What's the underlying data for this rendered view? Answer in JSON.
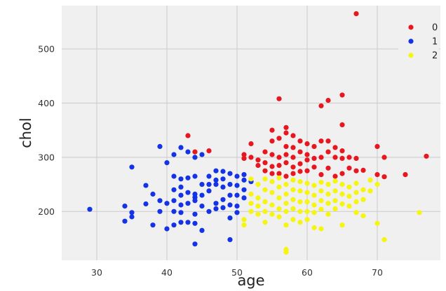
{
  "colors": {
    "0": "#e8161f",
    "1": "#1433e6",
    "2": "#f6f50f",
    "plot_background": "#f0f0f0",
    "grid": "#d0d0d0"
  },
  "chart_data": {
    "type": "scatter",
    "title": "",
    "xlabel": "age",
    "ylabel": "chol",
    "xlim": [
      25,
      79
    ],
    "ylim": [
      110,
      580
    ],
    "x_ticks": [
      30,
      40,
      50,
      60,
      70
    ],
    "y_ticks": [
      200,
      300,
      400,
      500
    ],
    "grid": true,
    "legend_position": "top-right",
    "series": [
      {
        "name": "0",
        "color": "#e8161f",
        "points": [
          [
            43,
            340
          ],
          [
            44,
            310
          ],
          [
            46,
            312
          ],
          [
            51,
            305
          ],
          [
            51,
            298
          ],
          [
            52,
            325
          ],
          [
            52,
            300
          ],
          [
            53,
            295
          ],
          [
            53,
            285
          ],
          [
            54,
            310
          ],
          [
            54,
            290
          ],
          [
            54,
            275
          ],
          [
            55,
            350
          ],
          [
            55,
            330
          ],
          [
            55,
            305
          ],
          [
            55,
            283
          ],
          [
            55,
            270
          ],
          [
            56,
            408
          ],
          [
            56,
            335
          ],
          [
            56,
            300
          ],
          [
            56,
            285
          ],
          [
            56,
            270
          ],
          [
            57,
            355
          ],
          [
            57,
            345
          ],
          [
            57,
            320
          ],
          [
            57,
            305
          ],
          [
            57,
            290
          ],
          [
            57,
            265
          ],
          [
            58,
            340
          ],
          [
            58,
            318
          ],
          [
            58,
            300
          ],
          [
            58,
            282
          ],
          [
            58,
            270
          ],
          [
            59,
            330
          ],
          [
            59,
            310
          ],
          [
            59,
            288
          ],
          [
            59,
            274
          ],
          [
            60,
            325
          ],
          [
            60,
            305
          ],
          [
            60,
            295
          ],
          [
            60,
            275
          ],
          [
            61,
            320
          ],
          [
            61,
            298
          ],
          [
            61,
            282
          ],
          [
            62,
            395
          ],
          [
            62,
            330
          ],
          [
            62,
            300
          ],
          [
            62,
            268
          ],
          [
            63,
            405
          ],
          [
            63,
            330
          ],
          [
            63,
            310
          ],
          [
            63,
            280
          ],
          [
            64,
            318
          ],
          [
            64,
            300
          ],
          [
            64,
            265
          ],
          [
            65,
            415
          ],
          [
            65,
            360
          ],
          [
            65,
            312
          ],
          [
            65,
            298
          ],
          [
            65,
            270
          ],
          [
            66,
            300
          ],
          [
            66,
            280
          ],
          [
            67,
            565
          ],
          [
            67,
            298
          ],
          [
            67,
            275
          ],
          [
            68,
            276
          ],
          [
            70,
            320
          ],
          [
            70,
            268
          ],
          [
            71,
            300
          ],
          [
            71,
            264
          ],
          [
            74,
            268
          ],
          [
            77,
            302
          ]
        ]
      },
      {
        "name": "1",
        "color": "#1433e6",
        "points": [
          [
            29,
            204
          ],
          [
            34,
            210
          ],
          [
            34,
            182
          ],
          [
            35,
            282
          ],
          [
            35,
            198
          ],
          [
            35,
            190
          ],
          [
            37,
            248
          ],
          [
            37,
            214
          ],
          [
            38,
            232
          ],
          [
            38,
            175
          ],
          [
            39,
            320
          ],
          [
            39,
            220
          ],
          [
            39,
            200
          ],
          [
            40,
            290
          ],
          [
            40,
            215
          ],
          [
            40,
            168
          ],
          [
            41,
            305
          ],
          [
            41,
            265
          ],
          [
            41,
            240
          ],
          [
            41,
            220
          ],
          [
            41,
            200
          ],
          [
            41,
            175
          ],
          [
            42,
            318
          ],
          [
            42,
            260
          ],
          [
            42,
            245
          ],
          [
            42,
            230
          ],
          [
            42,
            212
          ],
          [
            42,
            198
          ],
          [
            42,
            180
          ],
          [
            43,
            310
          ],
          [
            43,
            262
          ],
          [
            43,
            235
          ],
          [
            43,
            215
          ],
          [
            43,
            180
          ],
          [
            44,
            300
          ],
          [
            44,
            265
          ],
          [
            44,
            232
          ],
          [
            44,
            226
          ],
          [
            44,
            220
          ],
          [
            44,
            195
          ],
          [
            44,
            178
          ],
          [
            44,
            140
          ],
          [
            45,
            305
          ],
          [
            45,
            250
          ],
          [
            45,
            230
          ],
          [
            45,
            210
          ],
          [
            45,
            165
          ],
          [
            46,
            265
          ],
          [
            46,
            250
          ],
          [
            46,
            238
          ],
          [
            46,
            200
          ],
          [
            47,
            275
          ],
          [
            47,
            258
          ],
          [
            47,
            250
          ],
          [
            47,
            215
          ],
          [
            47,
            205
          ],
          [
            48,
            274
          ],
          [
            48,
            260
          ],
          [
            48,
            245
          ],
          [
            48,
            222
          ],
          [
            48,
            207
          ],
          [
            49,
            270
          ],
          [
            49,
            250
          ],
          [
            49,
            230
          ],
          [
            49,
            212
          ],
          [
            49,
            188
          ],
          [
            49,
            148
          ],
          [
            50,
            265
          ],
          [
            50,
            248
          ],
          [
            50,
            230
          ],
          [
            50,
            210
          ],
          [
            50,
            198
          ],
          [
            51,
            268
          ],
          [
            51,
            258
          ],
          [
            51,
            240
          ],
          [
            51,
            225
          ],
          [
            52,
            255
          ]
        ]
      },
      {
        "name": "2",
        "color": "#f6f50f",
        "points": [
          [
            51,
            175
          ],
          [
            51,
            185
          ],
          [
            52,
            260
          ],
          [
            52,
            232
          ],
          [
            52,
            215
          ],
          [
            52,
            200
          ],
          [
            53,
            250
          ],
          [
            53,
            225
          ],
          [
            53,
            210
          ],
          [
            53,
            195
          ],
          [
            54,
            260
          ],
          [
            54,
            240
          ],
          [
            54,
            218
          ],
          [
            54,
            200
          ],
          [
            54,
            180
          ],
          [
            55,
            255
          ],
          [
            55,
            235
          ],
          [
            55,
            212
          ],
          [
            55,
            195
          ],
          [
            56,
            262
          ],
          [
            56,
            245
          ],
          [
            56,
            225
          ],
          [
            56,
            205
          ],
          [
            56,
            190
          ],
          [
            57,
            250
          ],
          [
            57,
            232
          ],
          [
            57,
            215
          ],
          [
            57,
            200
          ],
          [
            57,
            175
          ],
          [
            57,
            130
          ],
          [
            57,
            125
          ],
          [
            58,
            258
          ],
          [
            58,
            240
          ],
          [
            58,
            222
          ],
          [
            58,
            205
          ],
          [
            58,
            185
          ],
          [
            59,
            255
          ],
          [
            59,
            238
          ],
          [
            59,
            218
          ],
          [
            59,
            200
          ],
          [
            59,
            180
          ],
          [
            60,
            252
          ],
          [
            60,
            235
          ],
          [
            60,
            218
          ],
          [
            60,
            200
          ],
          [
            60,
            185
          ],
          [
            61,
            248
          ],
          [
            61,
            230
          ],
          [
            61,
            212
          ],
          [
            61,
            198
          ],
          [
            61,
            170
          ],
          [
            62,
            254
          ],
          [
            62,
            238
          ],
          [
            62,
            220
          ],
          [
            62,
            204
          ],
          [
            62,
            168
          ],
          [
            63,
            250
          ],
          [
            63,
            232
          ],
          [
            63,
            215
          ],
          [
            63,
            195
          ],
          [
            64,
            256
          ],
          [
            64,
            238
          ],
          [
            64,
            220
          ],
          [
            64,
            205
          ],
          [
            65,
            250
          ],
          [
            65,
            232
          ],
          [
            65,
            214
          ],
          [
            65,
            175
          ],
          [
            66,
            245
          ],
          [
            66,
            228
          ],
          [
            66,
            210
          ],
          [
            67,
            252
          ],
          [
            67,
            235
          ],
          [
            67,
            218
          ],
          [
            67,
            198
          ],
          [
            68,
            240
          ],
          [
            68,
            222
          ],
          [
            68,
            192
          ],
          [
            69,
            258
          ],
          [
            69,
            238
          ],
          [
            70,
            250
          ],
          [
            70,
            178
          ],
          [
            71,
            148
          ],
          [
            76,
            198
          ]
        ]
      }
    ]
  }
}
